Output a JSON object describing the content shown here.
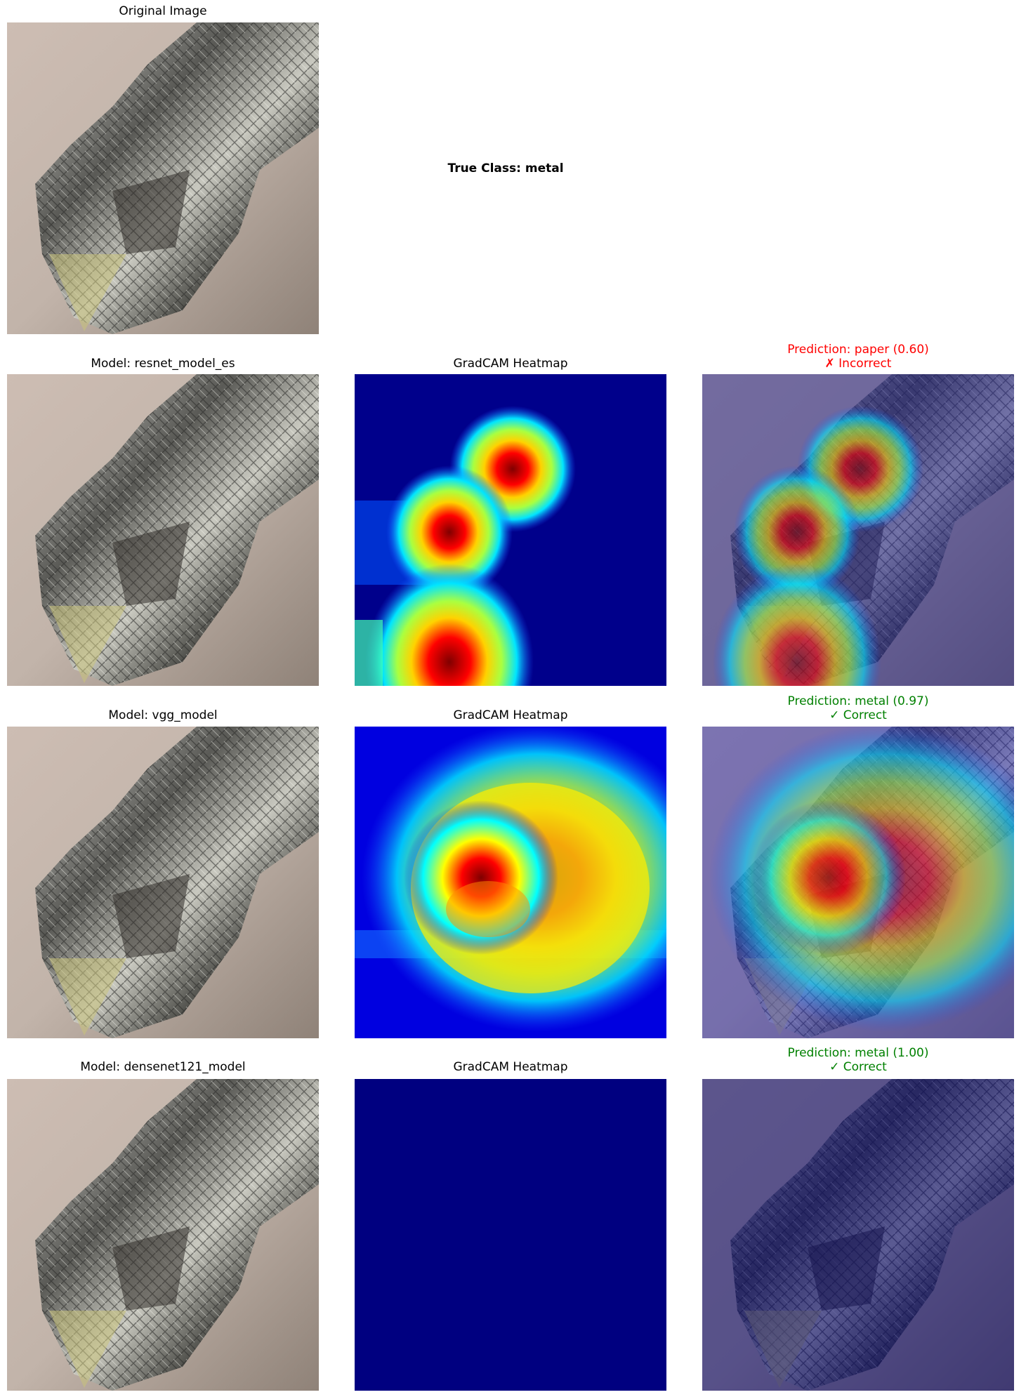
{
  "header": {
    "original_title": "Original Image",
    "true_class": "True Class: metal"
  },
  "rows": [
    {
      "model_title": "Model: resnet_model_es",
      "heatmap_title": "GradCAM Heatmap",
      "prediction_line": "Prediction: paper (0.60)",
      "verdict_line": "✗ Incorrect",
      "verdict_color": "#ff0000"
    },
    {
      "model_title": "Model: vgg_model",
      "heatmap_title": "GradCAM Heatmap",
      "prediction_line": "Prediction: metal (0.97)",
      "verdict_line": "✓ Correct",
      "verdict_color": "#008000"
    },
    {
      "model_title": "Model: densenet121_model",
      "heatmap_title": "GradCAM Heatmap",
      "prediction_line": "Prediction: metal (1.00)",
      "verdict_line": "✓ Correct",
      "verdict_color": "#008000"
    }
  ],
  "colors": {
    "jet_background": "#00008b",
    "correct": "#008000",
    "incorrect": "#ff0000"
  }
}
